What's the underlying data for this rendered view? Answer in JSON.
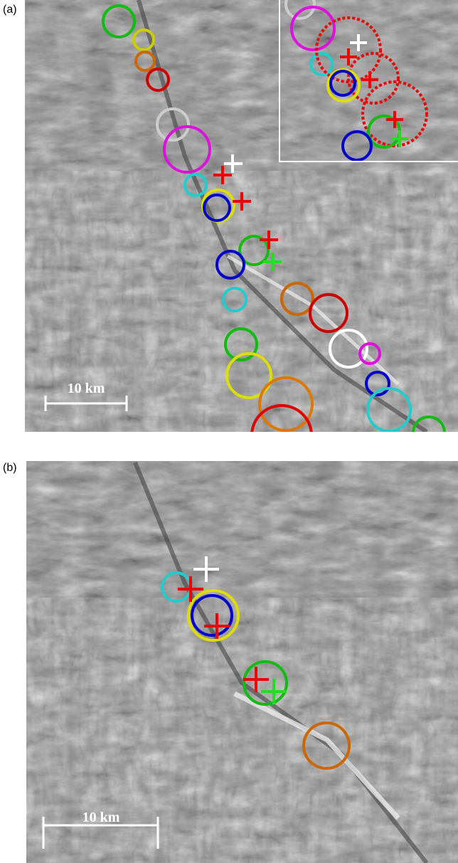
{
  "panels": [
    {
      "label": "(a)",
      "scale_bar": "10 km"
    },
    {
      "label": "(b)",
      "scale_bar": "10 km"
    }
  ]
}
